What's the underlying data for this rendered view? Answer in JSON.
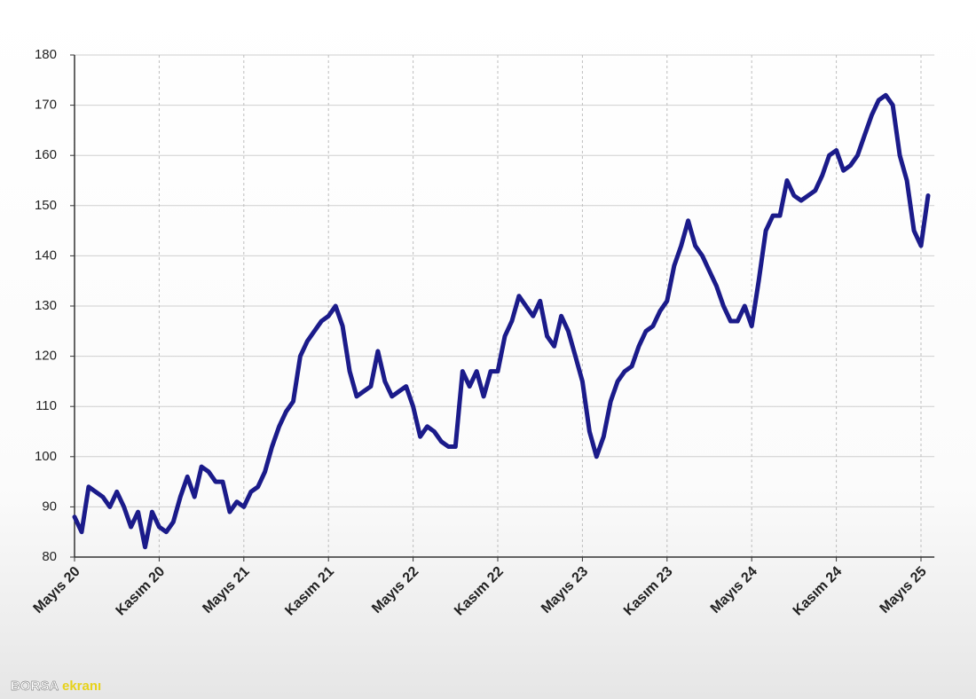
{
  "chart_data": {
    "type": "line",
    "categories": [
      "Mayıs 20",
      null,
      null,
      null,
      null,
      null,
      null,
      null,
      null,
      null,
      null,
      null,
      "Kasım 20",
      null,
      null,
      null,
      null,
      null,
      null,
      null,
      null,
      null,
      null,
      null,
      "Mayıs 21",
      null,
      null,
      null,
      null,
      null,
      null,
      null,
      null,
      null,
      null,
      null,
      "Kasım 21",
      null,
      null,
      null,
      null,
      null,
      null,
      null,
      null,
      null,
      null,
      null,
      "Mayıs 22",
      null,
      null,
      null,
      null,
      null,
      null,
      null,
      null,
      null,
      null,
      null,
      "Kasım 22",
      null,
      null,
      null,
      null,
      null,
      null,
      null,
      null,
      null,
      null,
      null,
      "Mayıs 23",
      null,
      null,
      null,
      null,
      null,
      null,
      null,
      null,
      null,
      null,
      null,
      "Kasım 23",
      null,
      null,
      null,
      null,
      null,
      null,
      null,
      null,
      null,
      null,
      null,
      "Mayıs 24",
      null,
      null,
      null,
      null,
      null,
      null,
      null,
      null,
      null,
      null,
      null,
      "Kasım 24",
      null,
      null,
      null,
      null,
      null,
      null,
      null,
      null,
      null,
      null,
      null,
      "Mayıs 25",
      null
    ],
    "values": [
      88,
      85,
      94,
      93,
      92,
      90,
      93,
      90,
      86,
      89,
      82,
      89,
      86,
      85,
      87,
      92,
      96,
      92,
      98,
      97,
      95,
      95,
      89,
      91,
      90,
      93,
      94,
      97,
      102,
      106,
      109,
      111,
      120,
      123,
      125,
      127,
      128,
      130,
      126,
      117,
      112,
      113,
      114,
      121,
      115,
      112,
      113,
      114,
      110,
      104,
      106,
      105,
      103,
      102,
      102,
      117,
      114,
      117,
      112,
      117,
      117,
      124,
      127,
      132,
      130,
      128,
      131,
      124,
      122,
      128,
      125,
      120,
      115,
      105,
      100,
      104,
      111,
      115,
      117,
      118,
      122,
      125,
      126,
      129,
      131,
      138,
      142,
      147,
      142,
      140,
      137,
      134,
      130,
      127,
      127,
      130,
      126,
      135,
      145,
      148,
      148,
      155,
      152,
      151,
      152,
      153,
      156,
      160,
      161,
      157,
      158,
      160,
      164,
      168,
      171,
      172,
      170,
      160,
      155,
      145,
      142,
      152
    ],
    "color": "#1b1b8a",
    "ylim": [
      80,
      180
    ],
    "yticks": [
      80,
      90,
      100,
      110,
      120,
      130,
      140,
      150,
      160,
      170,
      180
    ],
    "grid": true
  },
  "watermark": {
    "brand": "BORSA",
    "suffix": "ekranı"
  }
}
